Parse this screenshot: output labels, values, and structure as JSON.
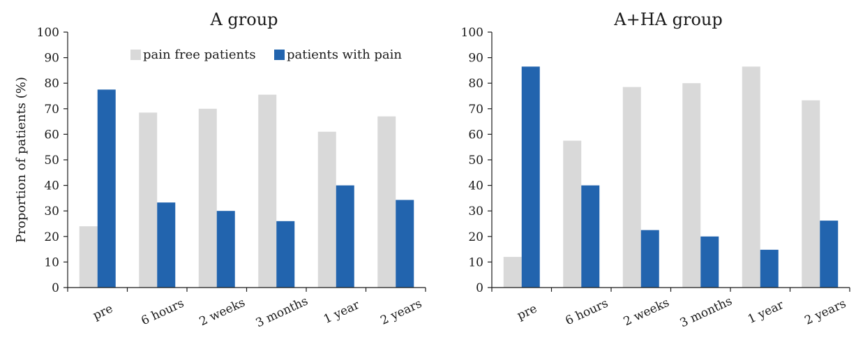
{
  "chart_data": [
    {
      "type": "bar",
      "title": "A group",
      "ylabel": "Proportion of patients (%)",
      "xlabel": "",
      "ylim": [
        0,
        100
      ],
      "yticks": [
        "0",
        "10",
        "20",
        "30",
        "40",
        "50",
        "60",
        "70",
        "80",
        "90",
        "100"
      ],
      "categories": [
        "pre",
        "6 hours",
        "2 weeks",
        "3 months",
        "1 year",
        "2 years"
      ],
      "series": [
        {
          "name": "pain free patients",
          "color": "#d9d9d9",
          "values": [
            24,
            68.5,
            70,
            75.5,
            61,
            67
          ]
        },
        {
          "name": "patients with pain",
          "color": "#2264ae",
          "values": [
            77.5,
            33.3,
            30,
            26,
            40,
            34.3
          ]
        }
      ],
      "legend": "top",
      "grid": false
    },
    {
      "type": "bar",
      "title": "A+HA group",
      "ylabel": "",
      "xlabel": "",
      "ylim": [
        0,
        100
      ],
      "yticks": [
        "0",
        "10",
        "20",
        "30",
        "40",
        "50",
        "60",
        "70",
        "80",
        "90",
        "100"
      ],
      "categories": [
        "pre",
        "6 hours",
        "2 weeks",
        "3 months",
        "1 year",
        "2 years"
      ],
      "series": [
        {
          "name": "pain free patients",
          "color": "#d9d9d9",
          "values": [
            12,
            57.5,
            78.5,
            80,
            86.5,
            73.3
          ]
        },
        {
          "name": "patients with pain",
          "color": "#2264ae",
          "values": [
            86.5,
            40,
            22.5,
            20,
            14.8,
            26.2
          ]
        }
      ],
      "grid": false
    }
  ]
}
